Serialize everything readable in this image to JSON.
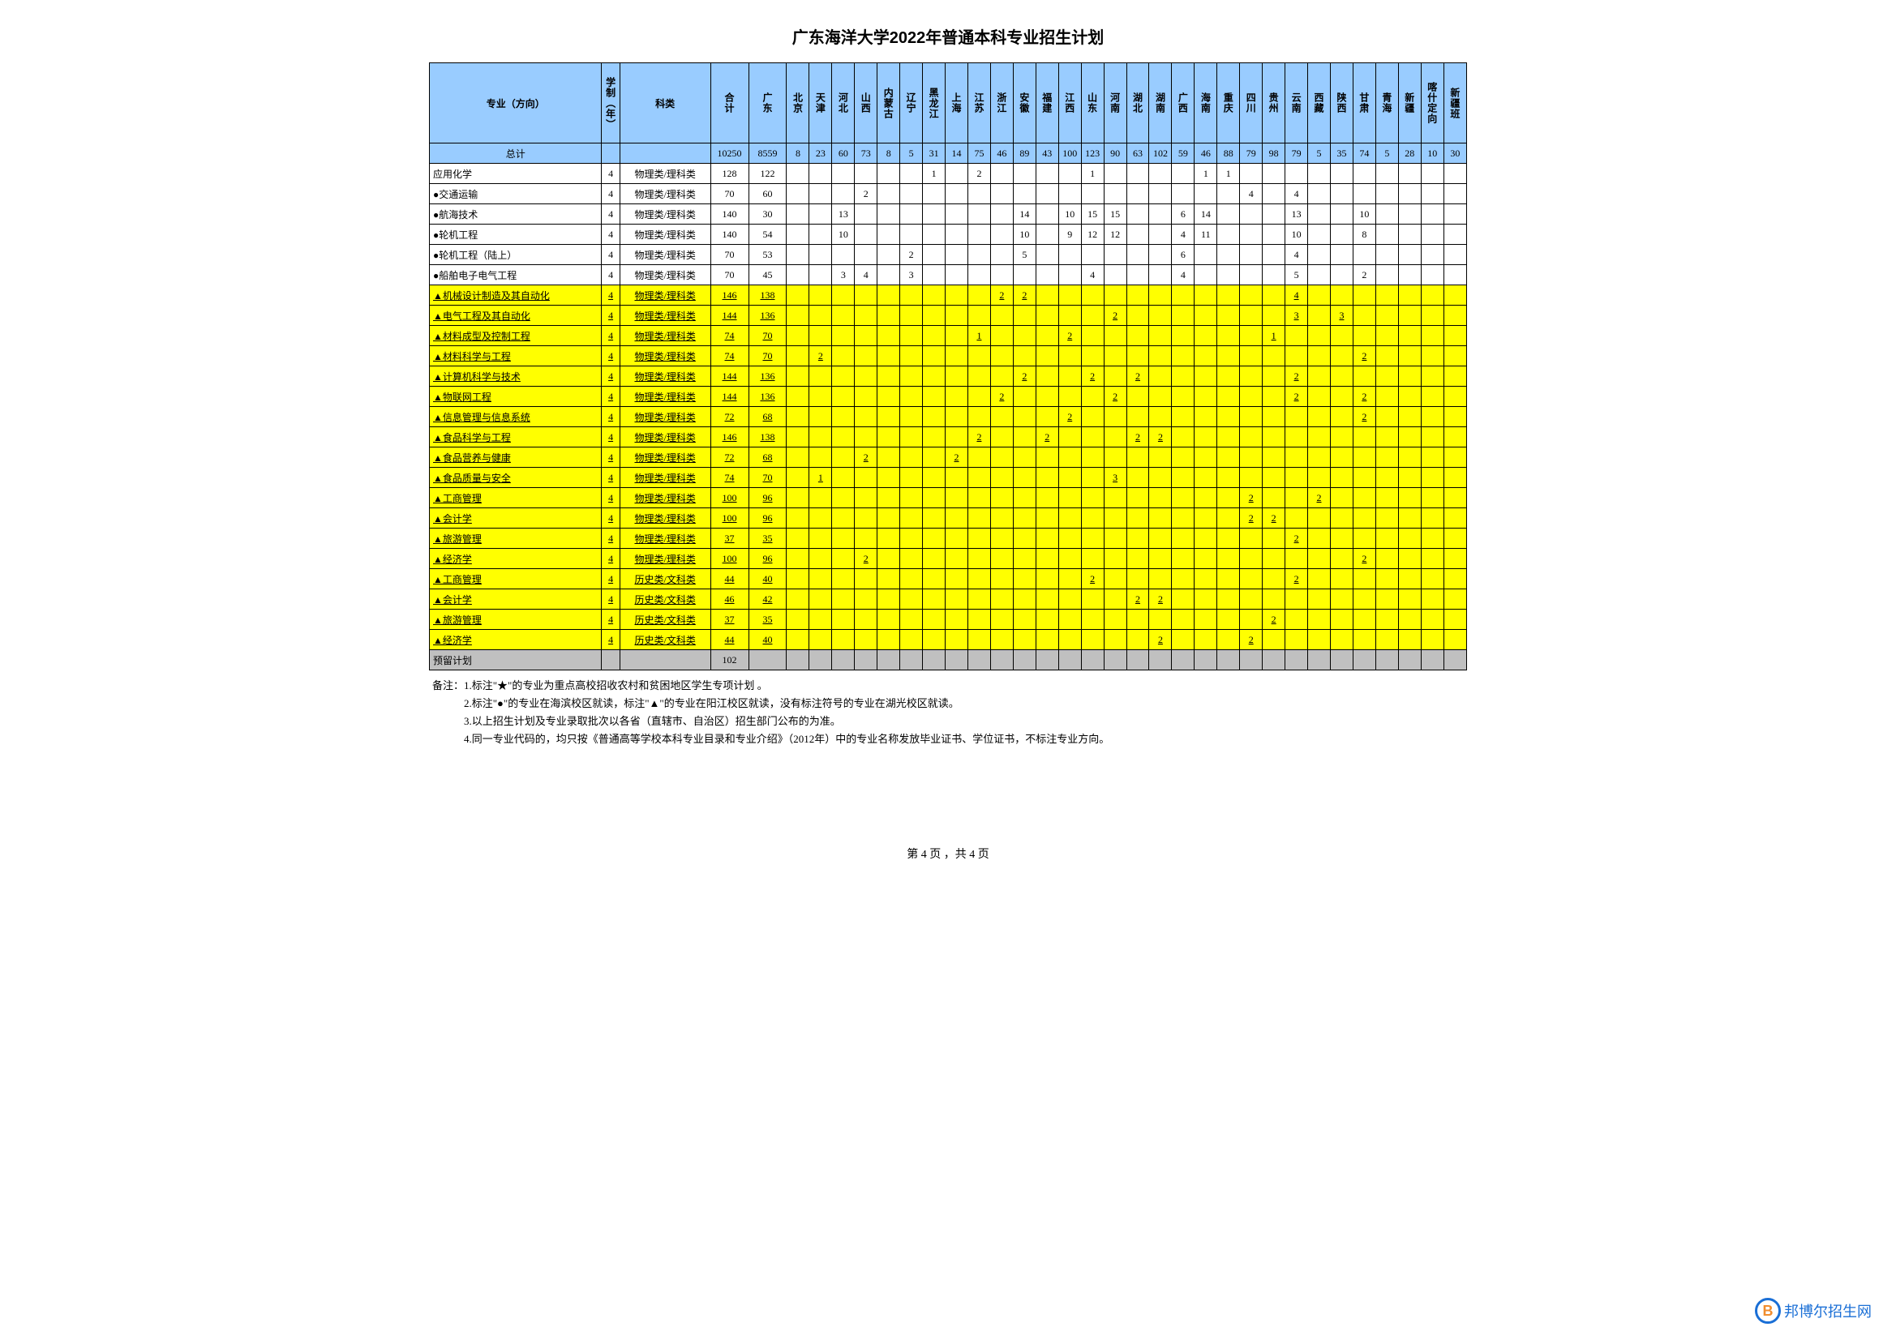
{
  "title": "广东海洋大学2022年普通本科专业招生计划",
  "header": {
    "major": "专业（方向）",
    "duration": "学制（年）",
    "category": "科类",
    "sum": "合计",
    "provinces": [
      "广东",
      "北京",
      "天津",
      "河北",
      "山西",
      "内蒙古",
      "辽宁",
      "黑龙江",
      "上海",
      "江苏",
      "浙江",
      "安徽",
      "福建",
      "江西",
      "山东",
      "河南",
      "湖北",
      "湖南",
      "广西",
      "海南",
      "重庆",
      "四川",
      "贵州",
      "云南",
      "西藏",
      "陕西",
      "甘肃",
      "青海",
      "新疆",
      "喀什定向",
      "新疆班"
    ]
  },
  "totals": {
    "label": "总计",
    "sum": "10250",
    "values": [
      "8559",
      "8",
      "23",
      "60",
      "73",
      "8",
      "5",
      "31",
      "14",
      "75",
      "46",
      "89",
      "43",
      "100",
      "123",
      "90",
      "63",
      "102",
      "59",
      "46",
      "88",
      "79",
      "98",
      "79",
      "5",
      "35",
      "74",
      "5",
      "28",
      "10",
      "30"
    ]
  },
  "rows": [
    {
      "style": "plain",
      "major": "应用化学",
      "dur": "4",
      "cat": "物理类/理科类",
      "sum": "128",
      "v": [
        "122",
        "",
        "",
        "",
        "",
        "",
        "",
        "1",
        "",
        "2",
        "",
        "",
        "",
        "",
        "1",
        "",
        "",
        "",
        "",
        "1",
        "1",
        "",
        "",
        "",
        "",
        "",
        "",
        "",
        "",
        "",
        ""
      ]
    },
    {
      "style": "plain",
      "major": "●交通运输",
      "dur": "4",
      "cat": "物理类/理科类",
      "sum": "70",
      "v": [
        "60",
        "",
        "",
        "",
        "2",
        "",
        "",
        "",
        "",
        "",
        "",
        "",
        "",
        "",
        "",
        "",
        "",
        "",
        "",
        "",
        "",
        "4",
        "",
        "4",
        "",
        "",
        "",
        "",
        "",
        "",
        ""
      ]
    },
    {
      "style": "plain",
      "major": "●航海技术",
      "dur": "4",
      "cat": "物理类/理科类",
      "sum": "140",
      "v": [
        "30",
        "",
        "",
        "13",
        "",
        "",
        "",
        "",
        "",
        "",
        "",
        "14",
        "",
        "10",
        "15",
        "15",
        "",
        "",
        "6",
        "14",
        "",
        "",
        "",
        "13",
        "",
        "",
        "10",
        "",
        "",
        "",
        ""
      ]
    },
    {
      "style": "plain",
      "major": "●轮机工程",
      "dur": "4",
      "cat": "物理类/理科类",
      "sum": "140",
      "v": [
        "54",
        "",
        "",
        "10",
        "",
        "",
        "",
        "",
        "",
        "",
        "",
        "10",
        "",
        "9",
        "12",
        "12",
        "",
        "",
        "4",
        "11",
        "",
        "",
        "",
        "10",
        "",
        "",
        "8",
        "",
        "",
        "",
        ""
      ]
    },
    {
      "style": "plain",
      "major": "●轮机工程（陆上）",
      "dur": "4",
      "cat": "物理类/理科类",
      "sum": "70",
      "v": [
        "53",
        "",
        "",
        "",
        "",
        "",
        "2",
        "",
        "",
        "",
        "",
        "5",
        "",
        "",
        "",
        "",
        "",
        "",
        "6",
        "",
        "",
        "",
        "",
        "4",
        "",
        "",
        "",
        "",
        "",
        "",
        ""
      ]
    },
    {
      "style": "plain",
      "major": "●船舶电子电气工程",
      "dur": "4",
      "cat": "物理类/理科类",
      "sum": "70",
      "v": [
        "45",
        "",
        "",
        "3",
        "4",
        "",
        "3",
        "",
        "",
        "",
        "",
        "",
        "",
        "",
        "4",
        "",
        "",
        "",
        "4",
        "",
        "",
        "",
        "",
        "5",
        "",
        "",
        "2",
        "",
        "",
        "",
        ""
      ]
    },
    {
      "style": "yellow",
      "major": "▲机械设计制造及其自动化",
      "dur": "4",
      "cat": "物理类/理科类",
      "sum": "146",
      "v": [
        "138",
        "",
        "",
        "",
        "",
        "",
        "",
        "",
        "",
        "",
        "2",
        "2",
        "",
        "",
        "",
        "",
        "",
        "",
        "",
        "",
        "",
        "",
        "",
        "4",
        "",
        "",
        "",
        "",
        "",
        "",
        ""
      ]
    },
    {
      "style": "yellow",
      "major": "▲电气工程及其自动化",
      "dur": "4",
      "cat": "物理类/理科类",
      "sum": "144",
      "v": [
        "136",
        "",
        "",
        "",
        "",
        "",
        "",
        "",
        "",
        "",
        "",
        "",
        "",
        "",
        "",
        "2",
        "",
        "",
        "",
        "",
        "",
        "",
        "",
        "3",
        "",
        "3",
        "",
        "",
        "",
        "",
        ""
      ]
    },
    {
      "style": "yellow",
      "major": "▲材料成型及控制工程",
      "dur": "4",
      "cat": "物理类/理科类",
      "sum": "74",
      "v": [
        "70",
        "",
        "",
        "",
        "",
        "",
        "",
        "",
        "",
        "1",
        "",
        "",
        "",
        "2",
        "",
        "",
        "",
        "",
        "",
        "",
        "",
        "",
        "1",
        "",
        "",
        "",
        "",
        "",
        "",
        "",
        ""
      ]
    },
    {
      "style": "yellow",
      "major": "▲材料科学与工程",
      "dur": "4",
      "cat": "物理类/理科类",
      "sum": "74",
      "v": [
        "70",
        "",
        "2",
        "",
        "",
        "",
        "",
        "",
        "",
        "",
        "",
        "",
        "",
        "",
        "",
        "",
        "",
        "",
        "",
        "",
        "",
        "",
        "",
        "",
        "",
        "",
        "2",
        "",
        "",
        "",
        ""
      ]
    },
    {
      "style": "yellow",
      "major": "▲计算机科学与技术",
      "dur": "4",
      "cat": "物理类/理科类",
      "sum": "144",
      "v": [
        "136",
        "",
        "",
        "",
        "",
        "",
        "",
        "",
        "",
        "",
        "",
        "2",
        "",
        "",
        "2",
        "",
        "2",
        "",
        "",
        "",
        "",
        "",
        "",
        "2",
        "",
        "",
        "",
        "",
        "",
        "",
        ""
      ]
    },
    {
      "style": "yellow",
      "major": "▲物联网工程",
      "dur": "4",
      "cat": "物理类/理科类",
      "sum": "144",
      "v": [
        "136",
        "",
        "",
        "",
        "",
        "",
        "",
        "",
        "",
        "",
        "2",
        "",
        "",
        "",
        "",
        "2",
        "",
        "",
        "",
        "",
        "",
        "",
        "",
        "2",
        "",
        "",
        "2",
        "",
        "",
        "",
        ""
      ]
    },
    {
      "style": "yellow",
      "major": "▲信息管理与信息系统",
      "dur": "4",
      "cat": "物理类/理科类",
      "sum": "72",
      "v": [
        "68",
        "",
        "",
        "",
        "",
        "",
        "",
        "",
        "",
        "",
        "",
        "",
        "",
        "2",
        "",
        "",
        "",
        "",
        "",
        "",
        "",
        "",
        "",
        "",
        "",
        "",
        "2",
        "",
        "",
        "",
        ""
      ]
    },
    {
      "style": "yellow",
      "major": "▲食品科学与工程",
      "dur": "4",
      "cat": "物理类/理科类",
      "sum": "146",
      "v": [
        "138",
        "",
        "",
        "",
        "",
        "",
        "",
        "",
        "",
        "2",
        "",
        "",
        "2",
        "",
        "",
        "",
        "2",
        "2",
        "",
        "",
        "",
        "",
        "",
        "",
        "",
        "",
        "",
        "",
        "",
        "",
        ""
      ]
    },
    {
      "style": "yellow",
      "major": "▲食品营养与健康",
      "dur": "4",
      "cat": "物理类/理科类",
      "sum": "72",
      "v": [
        "68",
        "",
        "",
        "",
        "2",
        "",
        "",
        "",
        "2",
        "",
        "",
        "",
        "",
        "",
        "",
        "",
        "",
        "",
        "",
        "",
        "",
        "",
        "",
        "",
        "",
        "",
        "",
        "",
        "",
        "",
        ""
      ]
    },
    {
      "style": "yellow",
      "major": "▲食品质量与安全",
      "dur": "4",
      "cat": "物理类/理科类",
      "sum": "74",
      "v": [
        "70",
        "",
        "1",
        "",
        "",
        "",
        "",
        "",
        "",
        "",
        "",
        "",
        "",
        "",
        "",
        "3",
        "",
        "",
        "",
        "",
        "",
        "",
        "",
        "",
        "",
        "",
        "",
        "",
        "",
        "",
        ""
      ]
    },
    {
      "style": "yellow",
      "major": "▲工商管理",
      "dur": "4",
      "cat": "物理类/理科类",
      "sum": "100",
      "v": [
        "96",
        "",
        "",
        "",
        "",
        "",
        "",
        "",
        "",
        "",
        "",
        "",
        "",
        "",
        "",
        "",
        "",
        "",
        "",
        "",
        "",
        "2",
        "",
        "",
        "2",
        "",
        "",
        "",
        "",
        "",
        ""
      ]
    },
    {
      "style": "yellow",
      "major": "▲会计学",
      "dur": "4",
      "cat": "物理类/理科类",
      "sum": "100",
      "v": [
        "96",
        "",
        "",
        "",
        "",
        "",
        "",
        "",
        "",
        "",
        "",
        "",
        "",
        "",
        "",
        "",
        "",
        "",
        "",
        "",
        "",
        "2",
        "2",
        "",
        "",
        "",
        "",
        "",
        "",
        "",
        ""
      ]
    },
    {
      "style": "yellow",
      "major": "▲旅游管理",
      "dur": "4",
      "cat": "物理类/理科类",
      "sum": "37",
      "v": [
        "35",
        "",
        "",
        "",
        "",
        "",
        "",
        "",
        "",
        "",
        "",
        "",
        "",
        "",
        "",
        "",
        "",
        "",
        "",
        "",
        "",
        "",
        "",
        "2",
        "",
        "",
        "",
        "",
        "",
        "",
        ""
      ]
    },
    {
      "style": "yellow",
      "major": "▲经济学",
      "dur": "4",
      "cat": "物理类/理科类",
      "sum": "100",
      "v": [
        "96",
        "",
        "",
        "",
        "2",
        "",
        "",
        "",
        "",
        "",
        "",
        "",
        "",
        "",
        "",
        "",
        "",
        "",
        "",
        "",
        "",
        "",
        "",
        "",
        "",
        "",
        "2",
        "",
        "",
        "",
        ""
      ]
    },
    {
      "style": "yellow",
      "major": "▲工商管理",
      "dur": "4",
      "cat": "历史类/文科类",
      "sum": "44",
      "v": [
        "40",
        "",
        "",
        "",
        "",
        "",
        "",
        "",
        "",
        "",
        "",
        "",
        "",
        "",
        "2",
        "",
        "",
        "",
        "",
        "",
        "",
        "",
        "",
        "2",
        "",
        "",
        "",
        "",
        "",
        "",
        ""
      ]
    },
    {
      "style": "yellow",
      "major": "▲会计学",
      "dur": "4",
      "cat": "历史类/文科类",
      "sum": "46",
      "v": [
        "42",
        "",
        "",
        "",
        "",
        "",
        "",
        "",
        "",
        "",
        "",
        "",
        "",
        "",
        "",
        "",
        "2",
        "2",
        "",
        "",
        "",
        "",
        "",
        "",
        "",
        "",
        "",
        "",
        "",
        "",
        ""
      ]
    },
    {
      "style": "yellow",
      "major": "▲旅游管理",
      "dur": "4",
      "cat": "历史类/文科类",
      "sum": "37",
      "v": [
        "35",
        "",
        "",
        "",
        "",
        "",
        "",
        "",
        "",
        "",
        "",
        "",
        "",
        "",
        "",
        "",
        "",
        "",
        "",
        "",
        "",
        "",
        "2",
        "",
        "",
        "",
        "",
        "",
        "",
        "",
        ""
      ]
    },
    {
      "style": "yellow",
      "major": "▲经济学",
      "dur": "4",
      "cat": "历史类/文科类",
      "sum": "44",
      "v": [
        "40",
        "",
        "",
        "",
        "",
        "",
        "",
        "",
        "",
        "",
        "",
        "",
        "",
        "",
        "",
        "",
        "",
        "2",
        "",
        "",
        "",
        "2",
        "",
        "",
        "",
        "",
        "",
        "",
        "",
        "",
        ""
      ]
    },
    {
      "style": "gray",
      "major": "预留计划",
      "dur": "",
      "cat": "",
      "sum": "102",
      "v": [
        "",
        "",
        "",
        "",
        "",
        "",
        "",
        "",
        "",
        "",
        "",
        "",
        "",
        "",
        "",
        "",
        "",
        "",
        "",
        "",
        "",
        "",
        "",
        "",
        "",
        "",
        "",
        "",
        "",
        "",
        ""
      ]
    }
  ],
  "notes": [
    "备注：1.标注\"★\"的专业为重点高校招收农村和贫困地区学生专项计划 。",
    "　　　2.标注\"●\"的专业在海滨校区就读，标注\"▲\"的专业在阳江校区就读，没有标注符号的专业在湖光校区就读。",
    "　　　3.以上招生计划及专业录取批次以各省（直辖市、自治区）招生部门公布的为准。",
    "　　　4.同一专业代码的，均只按《普通高等学校本科专业目录和专业介绍》（2012年）中的专业名称发放毕业证书、学位证书，不标注专业方向。"
  ],
  "page_label": "第 4 页 ，共 4 页",
  "watermark": {
    "logo": "B",
    "text": "邦博尔招生网"
  }
}
